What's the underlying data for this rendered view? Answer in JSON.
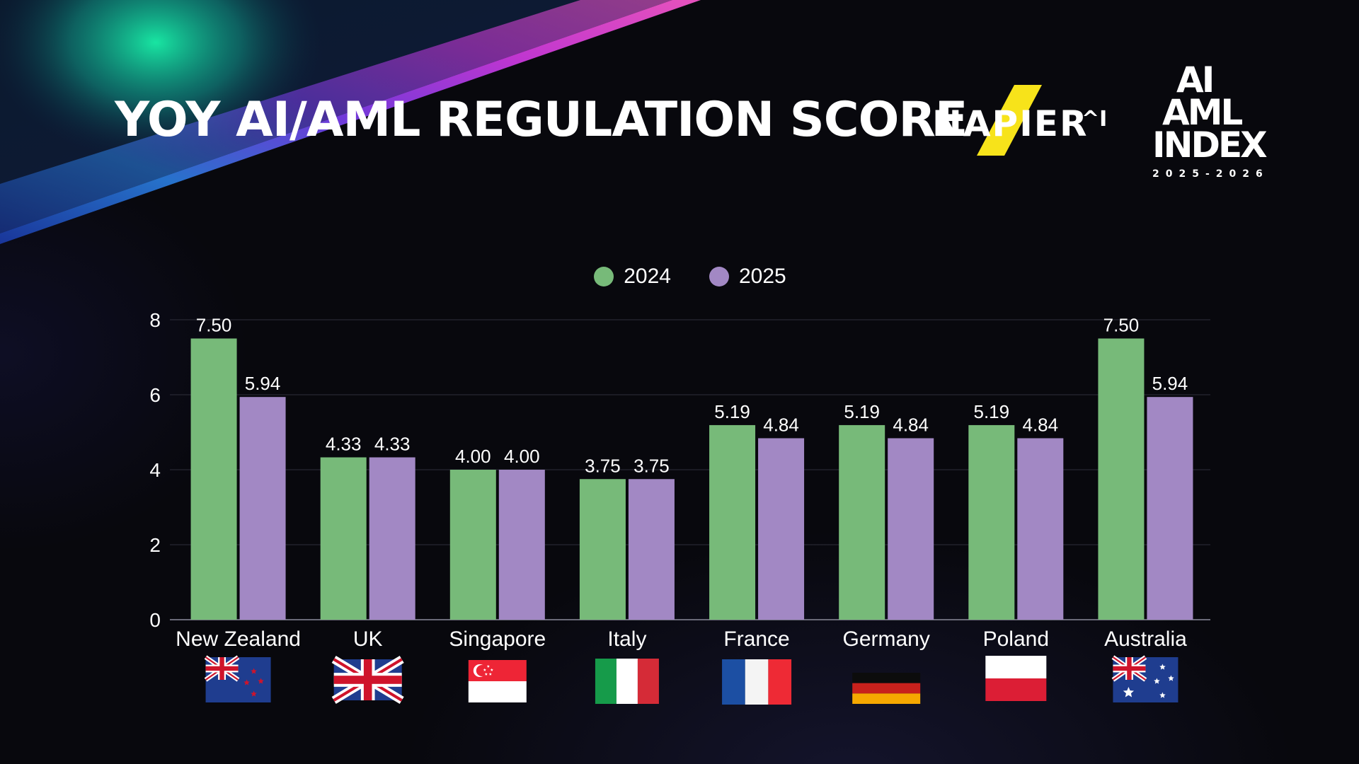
{
  "header": {
    "title": "YOY AI/AML REGULATION SCORE",
    "brand": "NAPIER AI",
    "index_logo": {
      "line1": "AI",
      "line2": "AML",
      "line3": "INDEX",
      "years": "2025-2026"
    }
  },
  "colors": {
    "series_2024": "#77ba79",
    "series_2025": "#a288c4",
    "background": "#08080d"
  },
  "chart_data": {
    "type": "bar",
    "title": "YOY AI/AML REGULATION SCORE",
    "xlabel": "",
    "ylabel": "",
    "ylim": [
      0,
      8
    ],
    "yticks": [
      0,
      2,
      4,
      6,
      8
    ],
    "grid": true,
    "legend_position": "top-center",
    "categories": [
      "New Zealand",
      "UK",
      "Singapore",
      "Italy",
      "France",
      "Germany",
      "Poland",
      "Australia"
    ],
    "flags": [
      "new-zealand-flag",
      "uk-flag",
      "singapore-flag",
      "italy-flag",
      "france-flag",
      "germany-flag",
      "poland-flag",
      "australia-flag"
    ],
    "series": [
      {
        "name": "2024",
        "values": [
          7.5,
          4.33,
          4.0,
          3.75,
          5.19,
          5.19,
          5.19,
          7.5
        ]
      },
      {
        "name": "2025",
        "values": [
          5.94,
          4.33,
          4.0,
          3.75,
          4.84,
          4.84,
          4.84,
          5.94
        ]
      }
    ]
  }
}
